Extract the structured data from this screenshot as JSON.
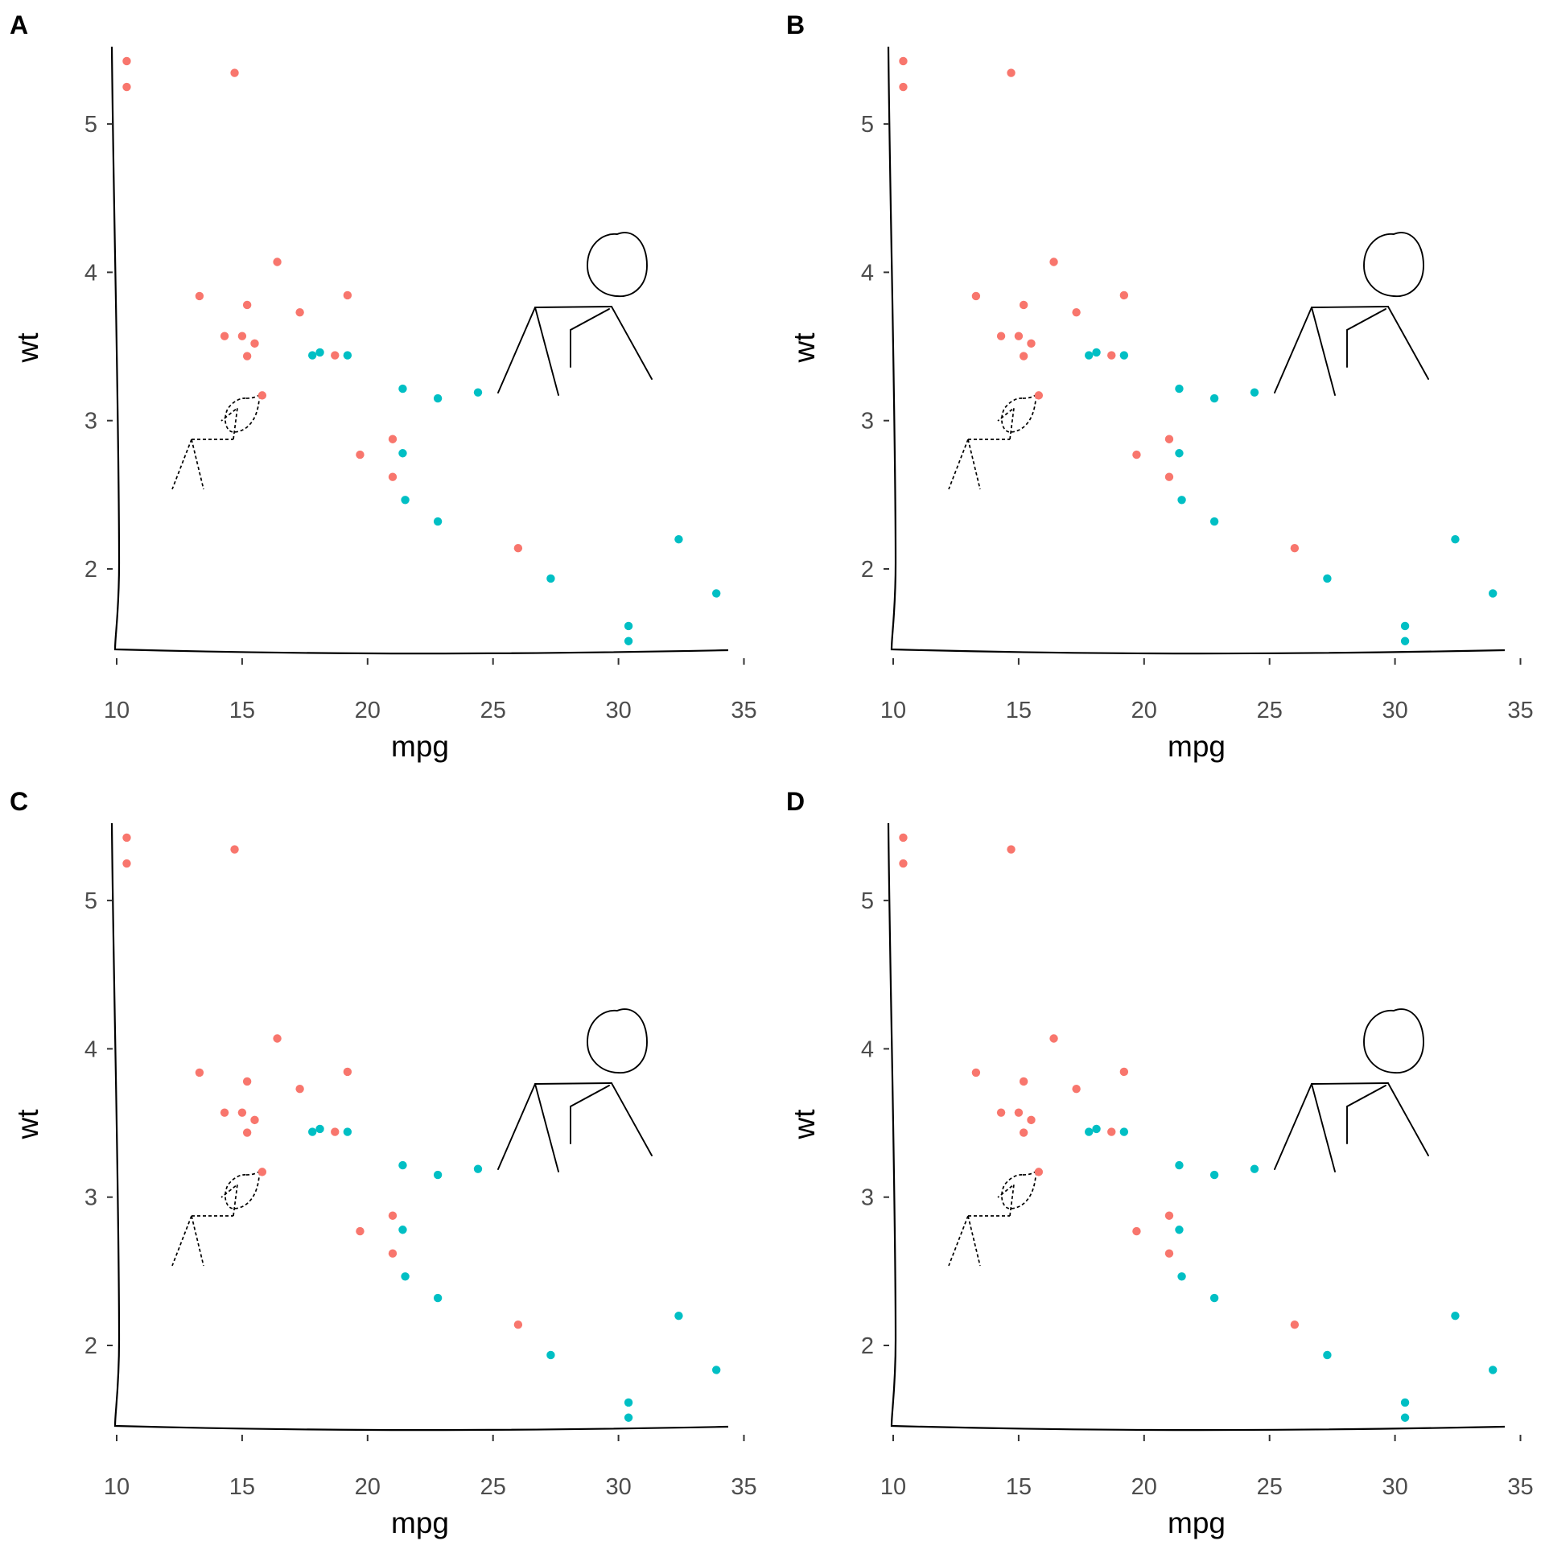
{
  "colors": {
    "automatic": "#f8766d",
    "manual": "#00bfc4",
    "ink": "#000000",
    "tick_text": "#4d4d4d"
  },
  "chart_data": [
    {
      "type": "scatter",
      "tag": "A",
      "xlabel": "mpg",
      "ylabel": "wt",
      "xlim": [
        9.3,
        34.6
      ],
      "ylim": [
        1.43,
        5.52
      ],
      "xticks": [
        10,
        15,
        20,
        25,
        30,
        35
      ],
      "yticks": [
        2,
        3,
        4,
        5
      ],
      "grid": false,
      "legend": "none",
      "series": [
        {
          "color_key": "automatic",
          "x": [
            10.4,
            10.4,
            14.7,
            16.4,
            19.2,
            13.3,
            15.2,
            17.3,
            14.3,
            15.0,
            15.5,
            15.2,
            18.7,
            15.8,
            19.7,
            21.0,
            21.0,
            26.0
          ],
          "y": [
            5.424,
            5.25,
            5.345,
            4.07,
            3.845,
            3.84,
            3.78,
            3.73,
            3.57,
            3.57,
            3.52,
            3.435,
            3.44,
            3.17,
            2.77,
            2.875,
            2.62,
            2.14
          ]
        },
        {
          "color_key": "manual",
          "x": [
            17.8,
            18.1,
            19.2,
            21.4,
            22.8,
            24.4,
            21.4,
            21.5,
            22.8,
            27.3,
            32.4,
            33.9,
            30.4,
            30.4
          ],
          "y": [
            3.44,
            3.46,
            3.44,
            3.215,
            3.15,
            3.19,
            2.78,
            2.465,
            2.32,
            1.935,
            2.2,
            1.835,
            1.615,
            1.513
          ]
        }
      ]
    },
    {
      "type": "scatter",
      "tag": "B",
      "xlabel": "mpg",
      "ylabel": "wt",
      "xlim": [
        9.3,
        34.6
      ],
      "ylim": [
        1.43,
        5.52
      ],
      "xticks": [
        10,
        15,
        20,
        25,
        30,
        35
      ],
      "yticks": [
        2,
        3,
        4,
        5
      ],
      "grid": false,
      "legend": "none",
      "series": [
        {
          "color_key": "automatic",
          "x": [
            10.4,
            10.4,
            14.7,
            16.4,
            19.2,
            13.3,
            15.2,
            17.3,
            14.3,
            15.0,
            15.5,
            15.2,
            18.7,
            15.8,
            19.7,
            21.0,
            21.0,
            26.0
          ],
          "y": [
            5.424,
            5.25,
            5.345,
            4.07,
            3.845,
            3.84,
            3.78,
            3.73,
            3.57,
            3.57,
            3.52,
            3.435,
            3.44,
            3.17,
            2.77,
            2.875,
            2.62,
            2.14
          ]
        },
        {
          "color_key": "manual",
          "x": [
            17.8,
            18.1,
            19.2,
            21.4,
            22.8,
            24.4,
            21.4,
            21.5,
            22.8,
            27.3,
            32.4,
            33.9,
            30.4,
            30.4
          ],
          "y": [
            3.44,
            3.46,
            3.44,
            3.215,
            3.15,
            3.19,
            2.78,
            2.465,
            2.32,
            1.935,
            2.2,
            1.835,
            1.615,
            1.513
          ]
        }
      ]
    },
    {
      "type": "scatter",
      "tag": "C",
      "xlabel": "mpg",
      "ylabel": "wt",
      "xlim": [
        9.3,
        34.6
      ],
      "ylim": [
        1.43,
        5.52
      ],
      "xticks": [
        10,
        15,
        20,
        25,
        30,
        35
      ],
      "yticks": [
        2,
        3,
        4,
        5
      ],
      "grid": false,
      "legend": "none",
      "series": [
        {
          "color_key": "automatic",
          "x": [
            10.4,
            10.4,
            14.7,
            16.4,
            19.2,
            13.3,
            15.2,
            17.3,
            14.3,
            15.0,
            15.5,
            15.2,
            18.7,
            15.8,
            19.7,
            21.0,
            21.0,
            26.0
          ],
          "y": [
            5.424,
            5.25,
            5.345,
            4.07,
            3.845,
            3.84,
            3.78,
            3.73,
            3.57,
            3.57,
            3.52,
            3.435,
            3.44,
            3.17,
            2.77,
            2.875,
            2.62,
            2.14
          ]
        },
        {
          "color_key": "manual",
          "x": [
            17.8,
            18.1,
            19.2,
            21.4,
            22.8,
            24.4,
            21.4,
            21.5,
            22.8,
            27.3,
            32.4,
            33.9,
            30.4,
            30.4
          ],
          "y": [
            3.44,
            3.46,
            3.44,
            3.215,
            3.15,
            3.19,
            2.78,
            2.465,
            2.32,
            1.935,
            2.2,
            1.835,
            1.615,
            1.513
          ]
        }
      ]
    },
    {
      "type": "scatter",
      "tag": "D",
      "xlabel": "mpg",
      "ylabel": "wt",
      "xlim": [
        9.3,
        34.6
      ],
      "ylim": [
        1.43,
        5.52
      ],
      "xticks": [
        10,
        15,
        20,
        25,
        30,
        35
      ],
      "yticks": [
        2,
        3,
        4,
        5
      ],
      "grid": false,
      "legend": "none",
      "series": [
        {
          "color_key": "automatic",
          "x": [
            10.4,
            10.4,
            14.7,
            16.4,
            19.2,
            13.3,
            15.2,
            17.3,
            14.3,
            15.0,
            15.5,
            15.2,
            18.7,
            15.8,
            19.7,
            21.0,
            21.0,
            26.0
          ],
          "y": [
            5.424,
            5.25,
            5.345,
            4.07,
            3.845,
            3.84,
            3.78,
            3.73,
            3.57,
            3.57,
            3.52,
            3.435,
            3.44,
            3.17,
            2.77,
            2.875,
            2.62,
            2.14
          ]
        },
        {
          "color_key": "manual",
          "x": [
            17.8,
            18.1,
            19.2,
            21.4,
            22.8,
            24.4,
            21.4,
            21.5,
            22.8,
            27.3,
            32.4,
            33.9,
            30.4,
            30.4
          ],
          "y": [
            3.44,
            3.46,
            3.44,
            3.215,
            3.15,
            3.19,
            2.78,
            2.465,
            2.32,
            1.935,
            2.2,
            1.835,
            1.615,
            1.513
          ]
        }
      ]
    }
  ]
}
